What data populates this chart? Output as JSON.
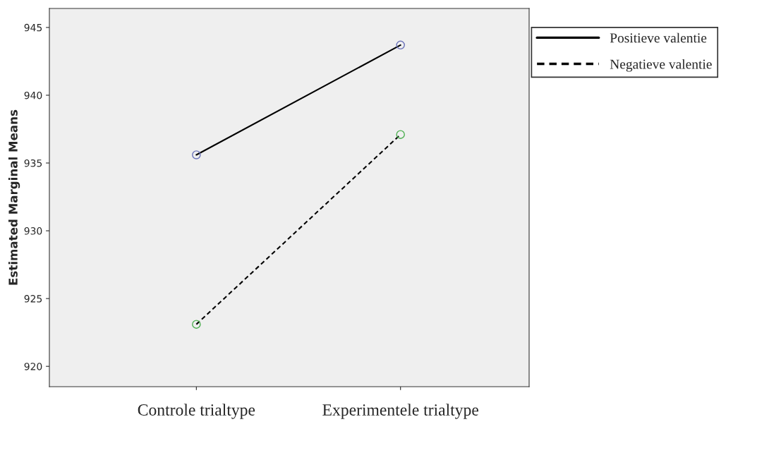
{
  "chart_data": {
    "type": "line",
    "ylabel": "Estimated Marginal Means",
    "categories": [
      "Controle trialtype",
      "Experimentele trialtype"
    ],
    "series": [
      {
        "name": "Positieve valentie",
        "color": "#000000",
        "colors": [
          "#6a72b8",
          "#6a72b8"
        ],
        "line_style": "solid",
        "values": [
          935.6,
          943.7
        ]
      },
      {
        "name": "Negatieve valentie",
        "color": "#000000",
        "colors": [
          "#4caf50",
          "#4caf50"
        ],
        "line_style": "dashed",
        "values": [
          923.1,
          937.1
        ]
      }
    ],
    "ylim": [
      918.5,
      946.4
    ],
    "yticks": [
      920,
      925,
      930,
      935,
      940,
      945
    ],
    "marker": "circle",
    "grid": false,
    "legend": "right"
  }
}
